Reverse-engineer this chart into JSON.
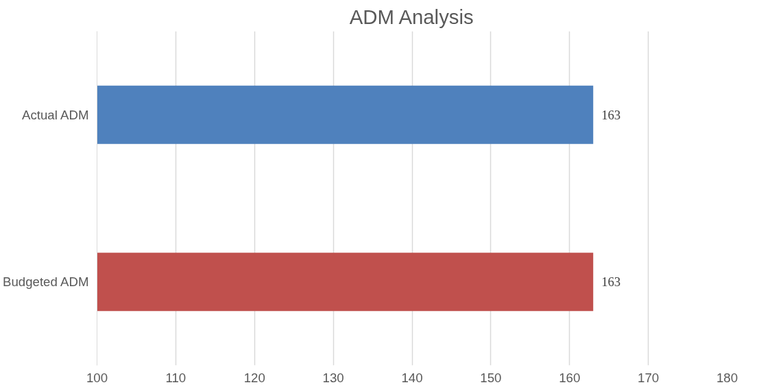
{
  "chart_data": {
    "type": "bar",
    "orientation": "horizontal",
    "title": "ADM Analysis",
    "categories": [
      "Actual ADM",
      "Budgeted ADM"
    ],
    "values": [
      163,
      163
    ],
    "colors": [
      "#4f81bd",
      "#c0504d"
    ],
    "xlim": [
      100,
      180
    ],
    "xticks": [
      100,
      110,
      120,
      130,
      140,
      150,
      160,
      170,
      180
    ],
    "grid": "x",
    "data_labels": true
  }
}
